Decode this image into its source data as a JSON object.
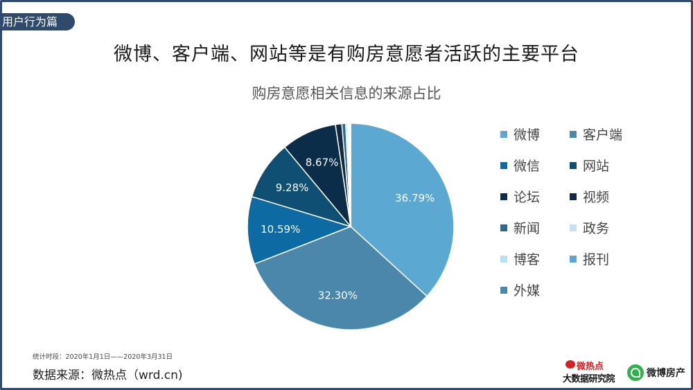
{
  "header": {
    "tag": "用户行为篇",
    "title": "微博、客户端、网站等是有购房意愿者活跃的主要平台"
  },
  "chart_data": {
    "type": "pie",
    "title": "购房意愿相关信息的来源占比",
    "categories": [
      "微博",
      "客户端",
      "微信",
      "网站",
      "论坛",
      "视频",
      "新闻",
      "政务",
      "博客",
      "报刊",
      "外媒"
    ],
    "values": [
      36.79,
      32.3,
      10.59,
      9.28,
      8.67,
      1.0,
      0.6,
      0.3,
      0.2,
      0.15,
      0.12
    ],
    "labels": [
      "36.79%",
      "32.30%",
      "10.59%",
      "9.28%",
      "8.67%",
      "",
      "",
      "",
      "",
      "",
      ""
    ],
    "colors": [
      "#5ba8d3",
      "#4a87aa",
      "#0d6aa3",
      "#0f4f73",
      "#0c2d4a",
      "#132a45",
      "#2f6a8c",
      "#c7e2ee",
      "#b6e3f2",
      "#5aa7d6",
      "#4a87aa"
    ],
    "legend_position": "right"
  },
  "footer": {
    "note": "统计时段：2020年1月1日——2020年3月31日",
    "source": "数据来源：微热点（wrd.cn)",
    "logo1_line1": "微热点",
    "logo1_line2": "大数据研究院",
    "logo2": "微博房产"
  }
}
